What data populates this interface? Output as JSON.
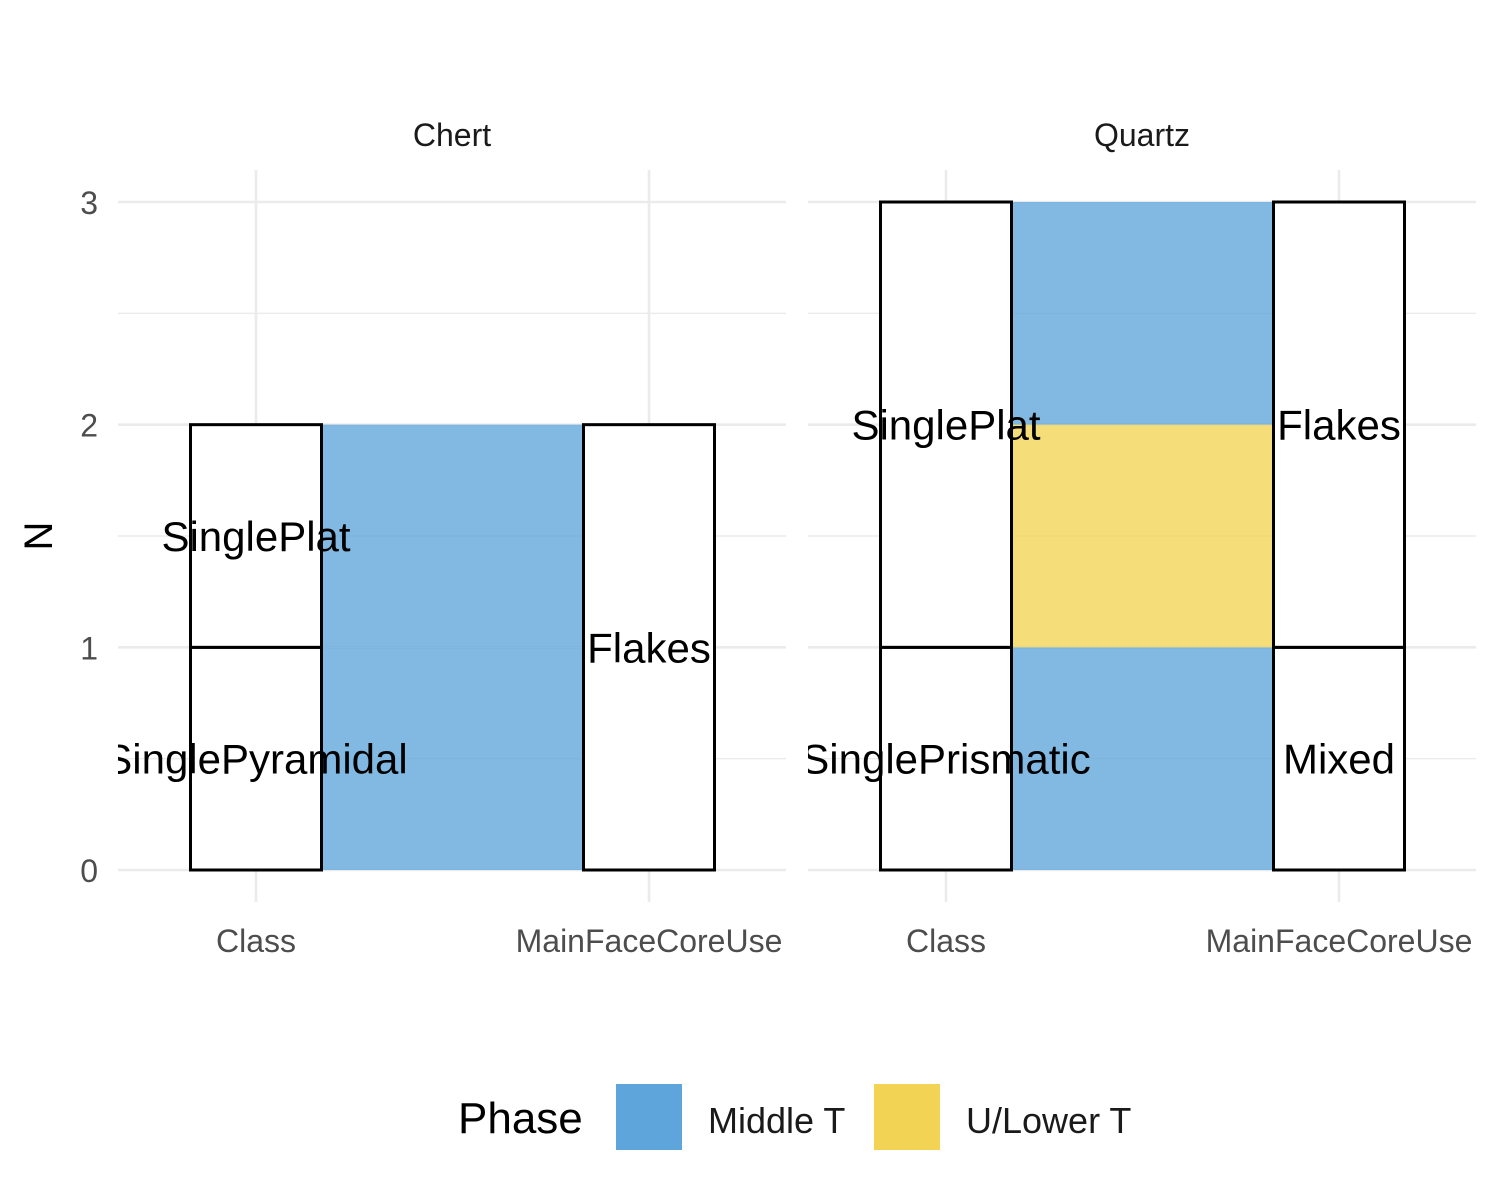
{
  "chart_data": {
    "type": "alluvial",
    "ylabel": "N",
    "ylim": [
      0,
      3
    ],
    "yticks": [
      0,
      1,
      2,
      3
    ],
    "axes": [
      "Class",
      "MainFaceCoreUse"
    ],
    "legend": {
      "title": "Phase",
      "position": "bottom",
      "entries": [
        {
          "name": "Middle T",
          "color": "#5DA5DA"
        },
        {
          "name": "U/Lower T",
          "color": "#F2D354"
        }
      ]
    },
    "panels": [
      {
        "title": "Chert",
        "strata": {
          "Class": [
            {
              "label": "SinglePyramidal",
              "ymin": 0,
              "ymax": 1
            },
            {
              "label": "SinglePlat",
              "ymin": 1,
              "ymax": 2
            }
          ],
          "MainFaceCoreUse": [
            {
              "label": "Flakes",
              "ymin": 0,
              "ymax": 2
            }
          ]
        },
        "flows": [
          {
            "phase": "Middle T",
            "from": "SinglePyramidal",
            "to": "Flakes",
            "count": 1
          },
          {
            "phase": "Middle T",
            "from": "SinglePlat",
            "to": "Flakes",
            "count": 1
          }
        ]
      },
      {
        "title": "Quartz",
        "strata": {
          "Class": [
            {
              "label": "SinglePrismatic",
              "ymin": 0,
              "ymax": 1
            },
            {
              "label": "SinglePlat",
              "ymin": 1,
              "ymax": 3
            }
          ],
          "MainFaceCoreUse": [
            {
              "label": "Mixed",
              "ymin": 0,
              "ymax": 1
            },
            {
              "label": "Flakes",
              "ymin": 1,
              "ymax": 3
            }
          ]
        },
        "flows": [
          {
            "phase": "Middle T",
            "from": "SinglePrismatic",
            "to": "Mixed",
            "count": 1
          },
          {
            "phase": "U/Lower T",
            "from": "SinglePlat",
            "to": "Flakes",
            "count": 1
          },
          {
            "phase": "Middle T",
            "from": "SinglePlat",
            "to": "Flakes",
            "count": 1
          }
        ]
      }
    ]
  }
}
